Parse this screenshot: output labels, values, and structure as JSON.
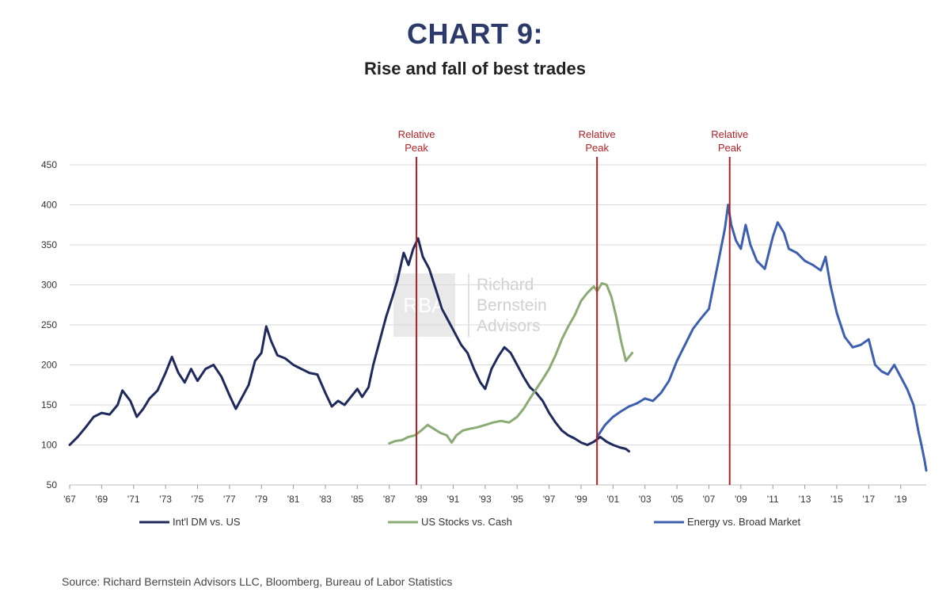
{
  "header": {
    "title": "CHART 9:",
    "subtitle": "Rise and fall of best trades"
  },
  "source": "Source: Richard Bernstein Advisors LLC, Bloomberg, Bureau of Labor Statistics",
  "watermark": {
    "logo_text": "RBA",
    "lines": [
      "Richard",
      "Bernstein",
      "Advisors"
    ]
  },
  "colors": {
    "dm": "#1f2a5c",
    "stocks": "#8aab74",
    "energy": "#3d5fb0",
    "peak": "#b21f24",
    "grid": "#d9d9d9"
  },
  "chart_data": {
    "type": "line",
    "title": "Rise and fall of best trades",
    "ylim": [
      50,
      450
    ],
    "yticks": [
      50,
      100,
      150,
      200,
      250,
      300,
      350,
      400,
      450
    ],
    "xlim": [
      1967,
      2020.6
    ],
    "xticks": [
      {
        "x": 1967,
        "label": "'67"
      },
      {
        "x": 1969,
        "label": "'69"
      },
      {
        "x": 1971,
        "label": "'71"
      },
      {
        "x": 1973,
        "label": "'73"
      },
      {
        "x": 1975,
        "label": "'75"
      },
      {
        "x": 1977,
        "label": "'77"
      },
      {
        "x": 1979,
        "label": "'79"
      },
      {
        "x": 1981,
        "label": "'81"
      },
      {
        "x": 1983,
        "label": "'83"
      },
      {
        "x": 1985,
        "label": "'85"
      },
      {
        "x": 1987,
        "label": "'87"
      },
      {
        "x": 1989,
        "label": "'89"
      },
      {
        "x": 1991,
        "label": "'91"
      },
      {
        "x": 1993,
        "label": "'93"
      },
      {
        "x": 1995,
        "label": "'95"
      },
      {
        "x": 1997,
        "label": "'97"
      },
      {
        "x": 1999,
        "label": "'99"
      },
      {
        "x": 2001,
        "label": "'01"
      },
      {
        "x": 2003,
        "label": "'03"
      },
      {
        "x": 2005,
        "label": "'05"
      },
      {
        "x": 2007,
        "label": "'07"
      },
      {
        "x": 2009,
        "label": "'09"
      },
      {
        "x": 2011,
        "label": "'11"
      },
      {
        "x": 2013,
        "label": "'13"
      },
      {
        "x": 2015,
        "label": "'15"
      },
      {
        "x": 2017,
        "label": "'17"
      },
      {
        "x": 2019,
        "label": "'19"
      }
    ],
    "grid": "horizontal",
    "legend_position": "bottom",
    "annotations": [
      {
        "x": 1988.7,
        "label": [
          "Relative",
          "Peak"
        ]
      },
      {
        "x": 2000.0,
        "label": [
          "Relative",
          "Peak"
        ]
      },
      {
        "x": 2008.3,
        "label": [
          "Relative",
          "Peak"
        ]
      }
    ],
    "series": [
      {
        "name": "Int'l DM vs. US",
        "points": [
          [
            1967.0,
            100
          ],
          [
            1967.5,
            110
          ],
          [
            1968.0,
            122
          ],
          [
            1968.5,
            135
          ],
          [
            1969.0,
            140
          ],
          [
            1969.5,
            138
          ],
          [
            1970.0,
            150
          ],
          [
            1970.3,
            168
          ],
          [
            1970.8,
            155
          ],
          [
            1971.2,
            135
          ],
          [
            1971.6,
            145
          ],
          [
            1972.0,
            158
          ],
          [
            1972.5,
            168
          ],
          [
            1973.0,
            190
          ],
          [
            1973.4,
            210
          ],
          [
            1973.8,
            190
          ],
          [
            1974.2,
            178
          ],
          [
            1974.6,
            195
          ],
          [
            1975.0,
            180
          ],
          [
            1975.5,
            195
          ],
          [
            1976.0,
            200
          ],
          [
            1976.5,
            185
          ],
          [
            1977.0,
            162
          ],
          [
            1977.4,
            145
          ],
          [
            1977.8,
            160
          ],
          [
            1978.2,
            175
          ],
          [
            1978.6,
            205
          ],
          [
            1979.0,
            215
          ],
          [
            1979.3,
            248
          ],
          [
            1979.6,
            230
          ],
          [
            1980.0,
            212
          ],
          [
            1980.5,
            208
          ],
          [
            1981.0,
            200
          ],
          [
            1981.5,
            195
          ],
          [
            1982.0,
            190
          ],
          [
            1982.5,
            188
          ],
          [
            1983.0,
            165
          ],
          [
            1983.4,
            148
          ],
          [
            1983.8,
            155
          ],
          [
            1984.2,
            150
          ],
          [
            1984.6,
            160
          ],
          [
            1985.0,
            170
          ],
          [
            1985.3,
            160
          ],
          [
            1985.7,
            172
          ],
          [
            1986.0,
            200
          ],
          [
            1986.4,
            230
          ],
          [
            1986.8,
            260
          ],
          [
            1987.2,
            285
          ],
          [
            1987.5,
            305
          ],
          [
            1987.9,
            340
          ],
          [
            1988.2,
            325
          ],
          [
            1988.5,
            345
          ],
          [
            1988.8,
            358
          ],
          [
            1989.1,
            335
          ],
          [
            1989.5,
            320
          ],
          [
            1989.9,
            295
          ],
          [
            1990.3,
            270
          ],
          [
            1990.7,
            255
          ],
          [
            1991.1,
            240
          ],
          [
            1991.5,
            225
          ],
          [
            1991.9,
            215
          ],
          [
            1992.3,
            195
          ],
          [
            1992.7,
            178
          ],
          [
            1993.0,
            170
          ],
          [
            1993.4,
            195
          ],
          [
            1993.8,
            210
          ],
          [
            1994.2,
            222
          ],
          [
            1994.6,
            215
          ],
          [
            1995.0,
            200
          ],
          [
            1995.4,
            185
          ],
          [
            1995.8,
            172
          ],
          [
            1996.2,
            165
          ],
          [
            1996.6,
            155
          ],
          [
            1997.0,
            140
          ],
          [
            1997.4,
            128
          ],
          [
            1997.8,
            118
          ],
          [
            1998.2,
            112
          ],
          [
            1998.6,
            108
          ],
          [
            1999.0,
            103
          ],
          [
            1999.4,
            100
          ],
          [
            1999.8,
            104
          ],
          [
            2000.2,
            110
          ],
          [
            2000.6,
            104
          ],
          [
            2001.0,
            100
          ],
          [
            2001.4,
            97
          ],
          [
            2001.8,
            95
          ],
          [
            2002.0,
            92
          ]
        ]
      },
      {
        "name": "US Stocks vs. Cash",
        "points": [
          [
            1987.0,
            102
          ],
          [
            1987.4,
            105
          ],
          [
            1987.8,
            106
          ],
          [
            1988.2,
            110
          ],
          [
            1988.6,
            112
          ],
          [
            1989.0,
            118
          ],
          [
            1989.4,
            125
          ],
          [
            1989.8,
            120
          ],
          [
            1990.2,
            115
          ],
          [
            1990.6,
            112
          ],
          [
            1990.9,
            103
          ],
          [
            1991.2,
            112
          ],
          [
            1991.6,
            118
          ],
          [
            1992.0,
            120
          ],
          [
            1992.5,
            122
          ],
          [
            1993.0,
            125
          ],
          [
            1993.5,
            128
          ],
          [
            1994.0,
            130
          ],
          [
            1994.5,
            128
          ],
          [
            1995.0,
            135
          ],
          [
            1995.4,
            145
          ],
          [
            1995.8,
            158
          ],
          [
            1996.2,
            170
          ],
          [
            1996.6,
            182
          ],
          [
            1997.0,
            195
          ],
          [
            1997.4,
            212
          ],
          [
            1997.8,
            232
          ],
          [
            1998.2,
            248
          ],
          [
            1998.6,
            262
          ],
          [
            1999.0,
            280
          ],
          [
            1999.4,
            290
          ],
          [
            1999.8,
            298
          ],
          [
            2000.0,
            292
          ],
          [
            2000.3,
            302
          ],
          [
            2000.6,
            300
          ],
          [
            2000.9,
            285
          ],
          [
            2001.2,
            260
          ],
          [
            2001.5,
            230
          ],
          [
            2001.8,
            205
          ],
          [
            2002.0,
            210
          ],
          [
            2002.2,
            215
          ]
        ]
      },
      {
        "name": "Energy vs. Broad Market",
        "points": [
          [
            2000.0,
            110
          ],
          [
            2000.5,
            125
          ],
          [
            2001.0,
            135
          ],
          [
            2001.5,
            142
          ],
          [
            2002.0,
            148
          ],
          [
            2002.5,
            152
          ],
          [
            2003.0,
            158
          ],
          [
            2003.5,
            155
          ],
          [
            2004.0,
            165
          ],
          [
            2004.5,
            180
          ],
          [
            2005.0,
            205
          ],
          [
            2005.5,
            225
          ],
          [
            2006.0,
            245
          ],
          [
            2006.5,
            258
          ],
          [
            2007.0,
            270
          ],
          [
            2007.3,
            300
          ],
          [
            2007.6,
            330
          ],
          [
            2008.0,
            370
          ],
          [
            2008.2,
            400
          ],
          [
            2008.4,
            375
          ],
          [
            2008.7,
            355
          ],
          [
            2009.0,
            345
          ],
          [
            2009.3,
            375
          ],
          [
            2009.6,
            350
          ],
          [
            2010.0,
            330
          ],
          [
            2010.5,
            320
          ],
          [
            2011.0,
            360
          ],
          [
            2011.3,
            378
          ],
          [
            2011.7,
            365
          ],
          [
            2012.0,
            345
          ],
          [
            2012.5,
            340
          ],
          [
            2013.0,
            330
          ],
          [
            2013.5,
            325
          ],
          [
            2014.0,
            318
          ],
          [
            2014.3,
            335
          ],
          [
            2014.6,
            300
          ],
          [
            2015.0,
            265
          ],
          [
            2015.5,
            235
          ],
          [
            2016.0,
            222
          ],
          [
            2016.5,
            225
          ],
          [
            2017.0,
            232
          ],
          [
            2017.4,
            200
          ],
          [
            2017.8,
            192
          ],
          [
            2018.2,
            188
          ],
          [
            2018.6,
            200
          ],
          [
            2019.0,
            185
          ],
          [
            2019.4,
            170
          ],
          [
            2019.8,
            150
          ],
          [
            2020.1,
            118
          ],
          [
            2020.3,
            100
          ],
          [
            2020.5,
            80
          ],
          [
            2020.6,
            68
          ]
        ]
      }
    ]
  }
}
